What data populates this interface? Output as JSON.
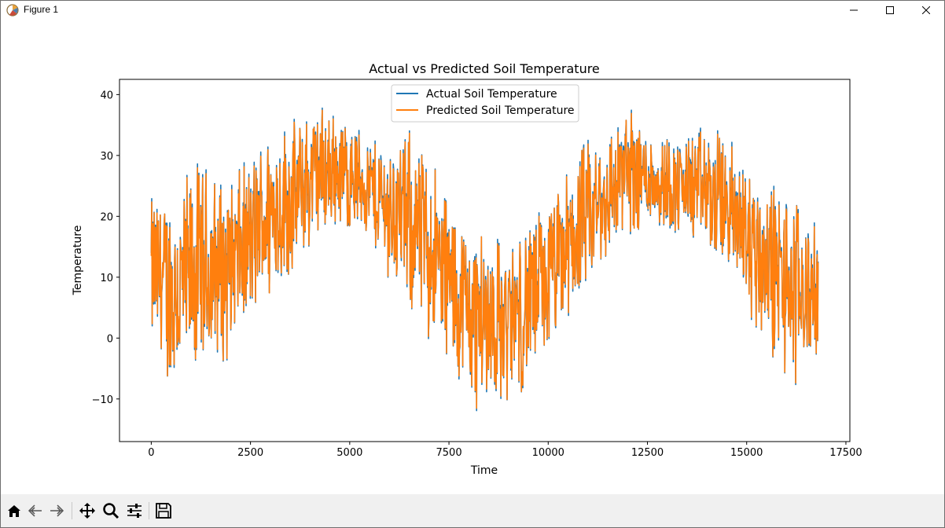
{
  "window": {
    "title": "Figure 1"
  },
  "icons": {
    "app": "matplotlib-icon",
    "minimize": "minimize-icon",
    "maximize": "maximize-icon",
    "close": "close-icon"
  },
  "toolbar": {
    "items": [
      "home-icon",
      "back-arrow-icon",
      "forward-arrow-icon",
      "pan-icon",
      "zoom-icon",
      "configure-subplots-icon",
      "save-icon"
    ]
  },
  "chart_data": {
    "type": "line",
    "title": "Actual vs Predicted Soil Temperature",
    "xlabel": "Time",
    "ylabel": "Temperature",
    "xlim": [
      -800,
      17600
    ],
    "ylim": [
      -17,
      42.5
    ],
    "xticks": [
      0,
      2500,
      5000,
      7500,
      10000,
      12500,
      15000,
      17500
    ],
    "yticks": [
      -10,
      0,
      10,
      20,
      30,
      40
    ],
    "legend_position": "upper-center",
    "series": [
      {
        "name": "Actual Soil Temperature",
        "color": "#1f77b4"
      },
      {
        "name": "Predicted Soil Temperature",
        "color": "#ff7f0e"
      }
    ],
    "n_points": 16800,
    "envelope_x": [
      0,
      600,
      1200,
      1800,
      2400,
      3000,
      3600,
      4200,
      4800,
      5400,
      6000,
      6600,
      7200,
      7800,
      8400,
      9000,
      9600,
      10200,
      10800,
      11400,
      12000,
      12600,
      13200,
      13800,
      14400,
      15000,
      15600,
      16200,
      16800
    ],
    "envelope_max": [
      25,
      27,
      31,
      28,
      30,
      37,
      37,
      40,
      38,
      35,
      34,
      36,
      30,
      22,
      20,
      17,
      22,
      25,
      33,
      35,
      40,
      36,
      34,
      36,
      35,
      32,
      28,
      26,
      18
    ],
    "envelope_min": [
      -3,
      -13,
      -9,
      -6,
      0,
      5,
      9,
      15,
      17,
      16,
      8,
      2,
      -4,
      -11,
      -14,
      -12,
      -9,
      -2,
      4,
      10,
      16,
      17,
      16,
      14,
      10,
      2,
      -5,
      -11,
      -4
    ]
  }
}
